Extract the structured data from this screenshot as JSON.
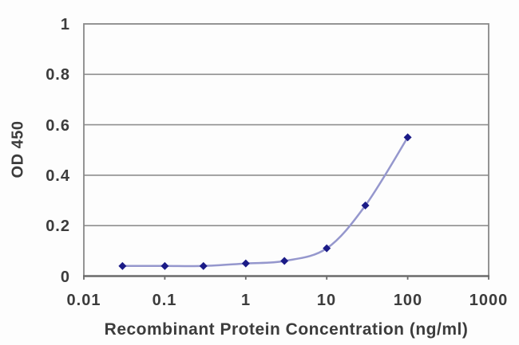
{
  "chart_data": {
    "type": "line",
    "title": "",
    "xlabel": "Recombinant Protein Concentration (ng/ml)",
    "ylabel": "OD 450",
    "x_scale": "log",
    "xlim": [
      0.01,
      1000
    ],
    "ylim": [
      0,
      1
    ],
    "x_ticks": [
      0.01,
      0.1,
      1,
      10,
      100,
      1000
    ],
    "x_tick_labels": [
      "0.01",
      "0.1",
      "1",
      "10",
      "100",
      "1000"
    ],
    "y_ticks": [
      0,
      0.2,
      0.4,
      0.6,
      0.8,
      1
    ],
    "y_tick_labels": [
      "0",
      "0.2",
      "0.4",
      "0.6",
      "0.8",
      "1"
    ],
    "grid": "horizontal",
    "legend": "none",
    "series": [
      {
        "name": "OD450",
        "marker": "diamond",
        "x": [
          0.03,
          0.1,
          0.3,
          1,
          3,
          10,
          30,
          100
        ],
        "y": [
          0.04,
          0.04,
          0.04,
          0.05,
          0.06,
          0.11,
          0.28,
          0.55
        ]
      }
    ],
    "colors": {
      "line": "#9597cd",
      "marker": "#1b1b87",
      "grid": "#8f8f8f",
      "frame": "#888888",
      "axis": "#6b6b6b",
      "text": "#3c3c3c",
      "background": "#fdfdfd"
    }
  }
}
